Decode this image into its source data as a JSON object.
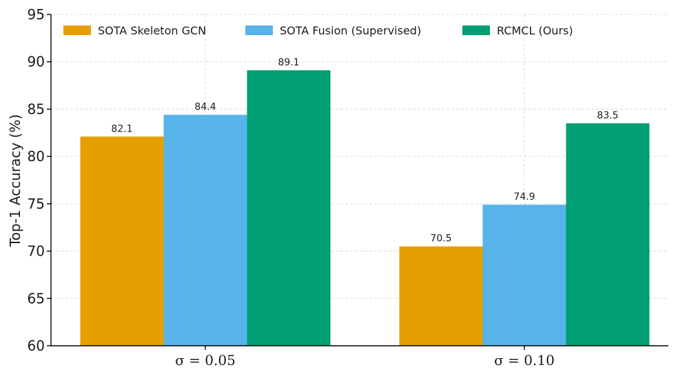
{
  "chart_data": {
    "type": "bar",
    "title": "",
    "xlabel": "",
    "ylabel": "Top-1 Accuracy (%)",
    "ylim": [
      60,
      95
    ],
    "yticks": [
      60,
      65,
      70,
      75,
      80,
      85,
      90,
      95
    ],
    "ytick_labels": [
      "60",
      "65",
      "70",
      "75",
      "80",
      "85",
      "90",
      "95"
    ],
    "categories": [
      "σ = 0.05",
      "σ = 0.10"
    ],
    "grid": true,
    "legend_position": "top",
    "series": [
      {
        "name": "SOTA Skeleton GCN",
        "color": "#e69f00",
        "values": [
          82.1,
          70.5
        ],
        "labels": [
          "82.1",
          "70.5"
        ]
      },
      {
        "name": "SOTA Fusion (Supervised)",
        "color": "#56b4e9",
        "values": [
          84.4,
          74.9
        ],
        "labels": [
          "84.4",
          "74.9"
        ]
      },
      {
        "name": "RCMCL (Ours)",
        "color": "#009e73",
        "values": [
          89.1,
          83.5
        ],
        "labels": [
          "89.1",
          "83.5"
        ]
      }
    ]
  }
}
